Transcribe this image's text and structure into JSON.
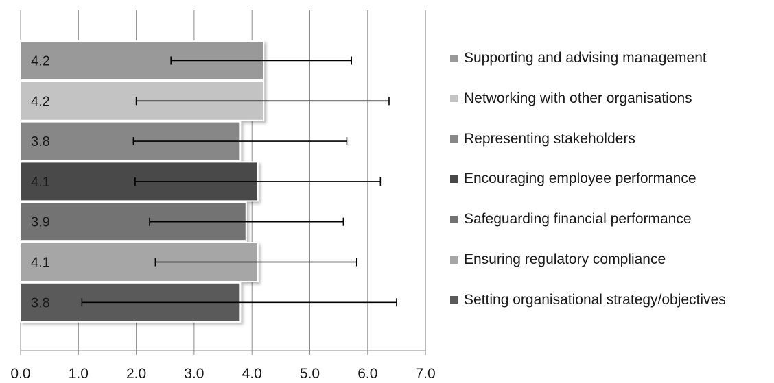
{
  "chart_data": {
    "type": "bar",
    "orientation": "horizontal",
    "categories": [
      "Supporting and advising management",
      "Networking with other organisations",
      "Representing stakeholders",
      "Encouraging employee performance",
      "Safeguarding financial performance",
      "Ensuring regulatory compliance",
      "Setting organisational strategy/objectives"
    ],
    "values": [
      4.2,
      4.2,
      3.8,
      4.1,
      3.9,
      4.1,
      3.8
    ],
    "data_labels": [
      "4.2",
      "4.2",
      "3.8",
      "4.1",
      "3.9",
      "4.1",
      "3.8"
    ],
    "error_low": [
      2.6,
      2.0,
      1.95,
      1.98,
      2.23,
      2.33,
      1.06
    ],
    "error_high": [
      5.72,
      6.37,
      5.64,
      6.22,
      5.58,
      5.81,
      6.5
    ],
    "colors": [
      "#999999",
      "#c3c3c3",
      "#878787",
      "#484848",
      "#737373",
      "#a6a6a6",
      "#5a5a5a"
    ],
    "xlim": [
      0,
      7
    ],
    "x_ticks": [
      "0.0",
      "1.0",
      "2.0",
      "3.0",
      "4.0",
      "5.0",
      "6.0",
      "7.0"
    ],
    "grid": true,
    "legend_position": "right",
    "title": "",
    "xlabel": "",
    "ylabel": ""
  }
}
